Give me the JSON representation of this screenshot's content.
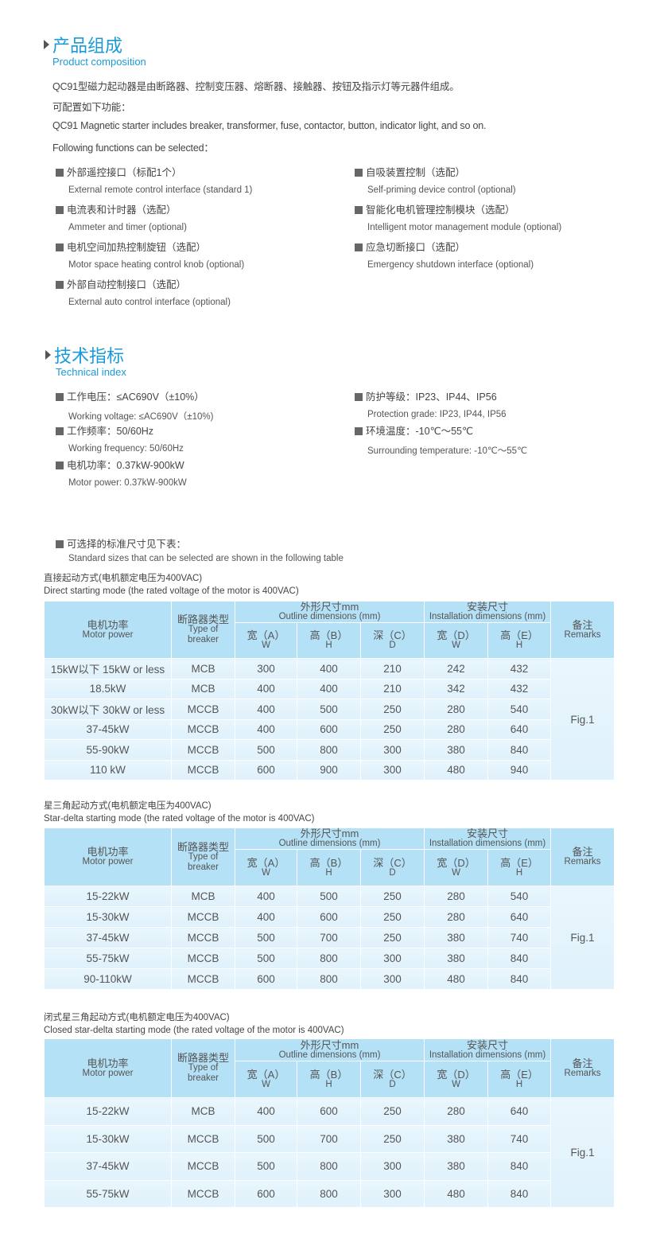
{
  "composition": {
    "title": "产品组成",
    "subtitle": "Product composition",
    "lines": [
      "QC91型磁力起动器是由断路器、控制变压器、熔断器、接触器、按钮及指示灯等元器件组成。",
      "可配置如下功能：",
      "QC91 Magnetic starter includes breaker, transformer, fuse, contactor, button, indicator light, and so on.",
      "Following functions can be selected："
    ],
    "features_left": [
      {
        "cn": "外部遥控接口（标配1个）",
        "en": "External remote control interface (standard 1)"
      },
      {
        "cn": "电流表和计时器（选配）",
        "en": "Ammeter and timer (optional)"
      },
      {
        "cn": "电机空间加热控制旋钮（选配）",
        "en": "Motor space heating control knob (optional)"
      },
      {
        "cn": "外部自动控制接口（选配）",
        "en": "External auto control interface (optional)"
      }
    ],
    "features_right": [
      {
        "cn": "自吸装置控制（选配）",
        "en": "Self-priming device control (optional)"
      },
      {
        "cn": "智能化电机管理控制模块（选配）",
        "en": "Intelligent motor management module (optional)"
      },
      {
        "cn": "应急切断接口（选配）",
        "en": "Emergency shutdown interface (optional)"
      }
    ]
  },
  "technical": {
    "title": "技术指标",
    "subtitle": "Technical index",
    "left": [
      {
        "cn": "工作电压：≤AC690V（±10%）",
        "en": "Working voltage: ≤AC690V（±10%)"
      },
      {
        "cn": "工作频率：50/60Hz",
        "en": "Working frequency: 50/60Hz"
      },
      {
        "cn": "电机功率：0.37kW-900kW",
        "en": "Motor power: 0.37kW-900kW"
      }
    ],
    "right": [
      {
        "cn": "防护等级：IP23、IP44、IP56",
        "en": "Protection grade: IP23, IP44, IP56"
      },
      {
        "cn": "环境温度：-10℃～55℃",
        "en": "Surrounding temperature: -10℃～55℃"
      }
    ],
    "sizes": {
      "cn": "可选择的标准尺寸见下表：",
      "en": "Standard sizes that can be selected are shown in the following table"
    }
  },
  "header": {
    "power_cn": "电机功率",
    "power_en": "Motor power",
    "breaker_cn": "断路器类型",
    "breaker_en": "Type of breaker",
    "outline_cn": "外形尺寸mm",
    "outline_en": "Outline dimensions (mm)",
    "install_cn": "安装尺寸",
    "install_en": "Installation dimensions (mm)",
    "remarks_cn": "备注",
    "remarks_en": "Remarks",
    "a": "宽（A）",
    "a_sub": "W",
    "b": "高（B）",
    "b_sub": "H",
    "c": "深（C）",
    "c_sub": "D",
    "d": "宽（D）",
    "d_sub": "W",
    "e": "高（E）",
    "e_sub": "H"
  },
  "tables": [
    {
      "caption_cn": "直接起动方式(电机额定电压为400VAC)",
      "caption_en": "Direct starting mode (the rated voltage of the motor is 400VAC)",
      "remark": "Fig.1",
      "rows": [
        [
          "15kW以下 15kW or less",
          "MCB",
          "300",
          "400",
          "210",
          "242",
          "432"
        ],
        [
          "18.5kW",
          "MCB",
          "400",
          "400",
          "210",
          "342",
          "432"
        ],
        [
          "30kW以下 30kW or less",
          "MCCB",
          "400",
          "500",
          "250",
          "280",
          "540"
        ],
        [
          "37-45kW",
          "MCCB",
          "400",
          "600",
          "250",
          "280",
          "640"
        ],
        [
          "55-90kW",
          "MCCB",
          "500",
          "800",
          "300",
          "380",
          "840"
        ],
        [
          "110 kW",
          "MCCB",
          "600",
          "900",
          "300",
          "480",
          "940"
        ]
      ]
    },
    {
      "caption_cn": "星三角起动方式(电机额定电压为400VAC)",
      "caption_en": "Star-delta starting mode (the rated voltage of the motor is 400VAC)",
      "remark": "Fig.1",
      "rows": [
        [
          "15-22kW",
          "MCB",
          "400",
          "500",
          "250",
          "280",
          "540"
        ],
        [
          "15-30kW",
          "MCCB",
          "400",
          "600",
          "250",
          "280",
          "640"
        ],
        [
          "37-45kW",
          "MCCB",
          "500",
          "700",
          "250",
          "380",
          "740"
        ],
        [
          "55-75kW",
          "MCCB",
          "500",
          "800",
          "300",
          "380",
          "840"
        ],
        [
          "90-110kW",
          "MCCB",
          "600",
          "800",
          "300",
          "480",
          "840"
        ]
      ]
    },
    {
      "caption_cn": "闭式星三角起动方式(电机额定电压为400VAC)",
      "caption_en": "Closed star-delta starting mode (the rated voltage of the motor is 400VAC)",
      "remark": "Fig.1",
      "rows": [
        [
          "15-22kW",
          "MCB",
          "400",
          "600",
          "250",
          "280",
          "640"
        ],
        [
          "15-30kW",
          "MCCB",
          "500",
          "700",
          "250",
          "380",
          "740"
        ],
        [
          "37-45kW",
          "MCCB",
          "500",
          "800",
          "300",
          "380",
          "840"
        ],
        [
          "55-75kW",
          "MCCB",
          "600",
          "800",
          "300",
          "480",
          "840"
        ]
      ]
    }
  ]
}
